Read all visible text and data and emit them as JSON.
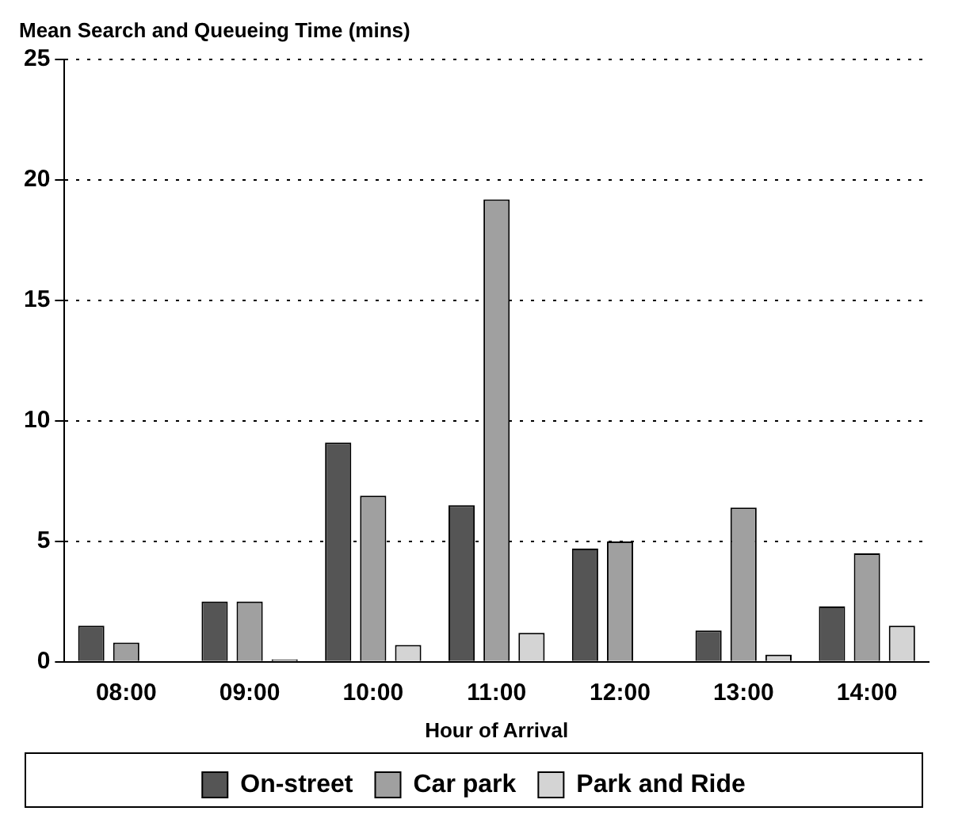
{
  "chart_data": {
    "type": "bar",
    "title": "Mean Search and Queueing Time (mins)",
    "xlabel": "Hour of Arrival",
    "categories": [
      "08:00",
      "09:00",
      "10:00",
      "11:00",
      "12:00",
      "13:00",
      "14:00"
    ],
    "series": [
      {
        "name": "On-street",
        "color": "#555555",
        "values": [
          1.5,
          2.5,
          9.1,
          6.5,
          4.7,
          1.3,
          2.3
        ]
      },
      {
        "name": "Car park",
        "color": "#a0a0a0",
        "values": [
          0.8,
          2.5,
          6.9,
          19.2,
          5.0,
          6.4,
          4.5
        ]
      },
      {
        "name": "Park and Ride",
        "color": "#d4d4d4",
        "values": [
          0,
          0.1,
          0.7,
          1.2,
          0,
          0.3,
          1.5
        ]
      }
    ],
    "ylim": [
      0,
      25
    ],
    "yticks": [
      0,
      5,
      10,
      15,
      20,
      25
    ],
    "grid": "y",
    "legend": "bottom"
  }
}
